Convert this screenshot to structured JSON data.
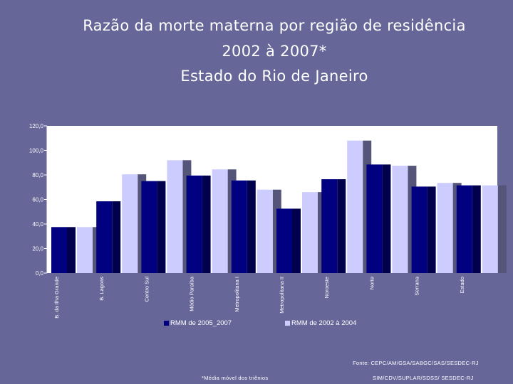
{
  "title_lines": [
    "Razão da morte materna por região de residência",
    "2002 à 2007*",
    "Estado do Rio de Janeiro"
  ],
  "footer": {
    "source": "Fonte: CEPC/AM/GSA/SABGC/SAS/SESDEC-RJ",
    "note": "*Média móvel dos triênios",
    "system": "SIM/CDV/SUPLAR/SDSS/ SESDEC-RJ"
  },
  "colors": {
    "background": "#666699",
    "series1": "#000080",
    "series2": "#ccccff",
    "plot_bg": "#ffffff"
  },
  "chart_data": {
    "type": "bar",
    "title": "",
    "xlabel": "",
    "ylabel": "",
    "categories": [
      "B. da Ilha Grande",
      "B. Lagoas",
      "Centro Sul",
      "Médio Paraíba",
      "Metropolitana I",
      "Metropolitana II",
      "Noroeste",
      "Norte",
      "Serrana",
      "Estado"
    ],
    "series": [
      {
        "name": "RMM de 2005_2007",
        "values": [
          37.5,
          58.5,
          75.0,
          79.5,
          75.5,
          52.5,
          76.5,
          88.5,
          70.5,
          71.5
        ]
      },
      {
        "name": "RMM de 2002 à 2004",
        "values": [
          37.5,
          80.5,
          92.0,
          84.5,
          68.0,
          66.0,
          108.0,
          87.5,
          73.5,
          71.5
        ]
      }
    ],
    "ylim": [
      0,
      120
    ],
    "yticks": [
      "0,0",
      "20,0",
      "40,0",
      "60,0",
      "80,0",
      "100,0",
      "120,0"
    ],
    "grid": false,
    "legend_position": "bottom"
  }
}
